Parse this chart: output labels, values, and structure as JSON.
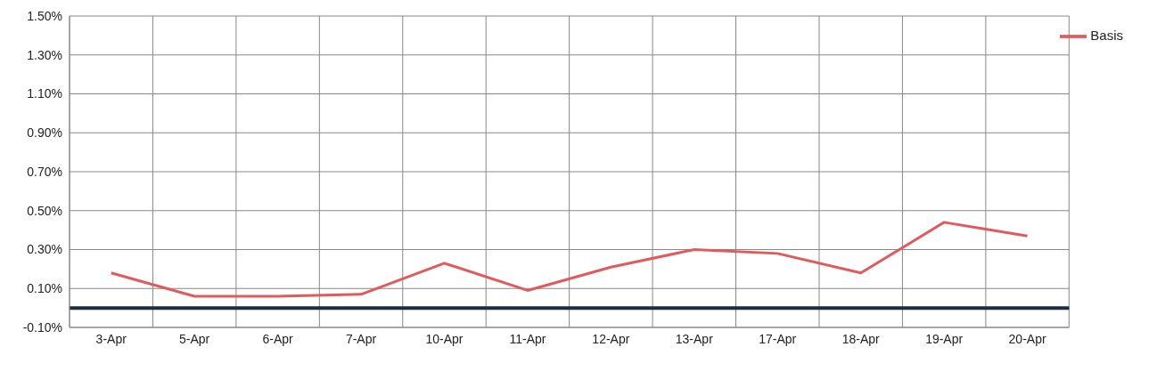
{
  "chart_data": {
    "type": "line",
    "categories": [
      "3-Apr",
      "5-Apr",
      "6-Apr",
      "7-Apr",
      "10-Apr",
      "11-Apr",
      "12-Apr",
      "13-Apr",
      "17-Apr",
      "18-Apr",
      "19-Apr",
      "20-Apr"
    ],
    "series": [
      {
        "name": "Basis",
        "color": "#e05a5e",
        "values": [
          0.18,
          0.06,
          0.06,
          0.07,
          0.23,
          0.09,
          0.21,
          0.3,
          0.28,
          0.18,
          0.44,
          0.37
        ]
      }
    ],
    "ylim": [
      -0.1,
      1.5
    ],
    "yticks": [
      {
        "value": -0.1,
        "label": "-0.10%"
      },
      {
        "value": 0.1,
        "label": "0.10%"
      },
      {
        "value": 0.3,
        "label": "0.30%"
      },
      {
        "value": 0.5,
        "label": "0.50%"
      },
      {
        "value": 0.7,
        "label": "0.70%"
      },
      {
        "value": 0.9,
        "label": "0.90%"
      },
      {
        "value": 1.1,
        "label": "1.10%"
      },
      {
        "value": 1.3,
        "label": "1.30%"
      },
      {
        "value": 1.5,
        "label": "1.50%"
      }
    ],
    "ref_lines": [
      {
        "axis": "y",
        "value": 0,
        "color": "#1f2d44"
      }
    ],
    "grid": true,
    "legend": "top right",
    "marker": "none",
    "line_style": "solid"
  }
}
